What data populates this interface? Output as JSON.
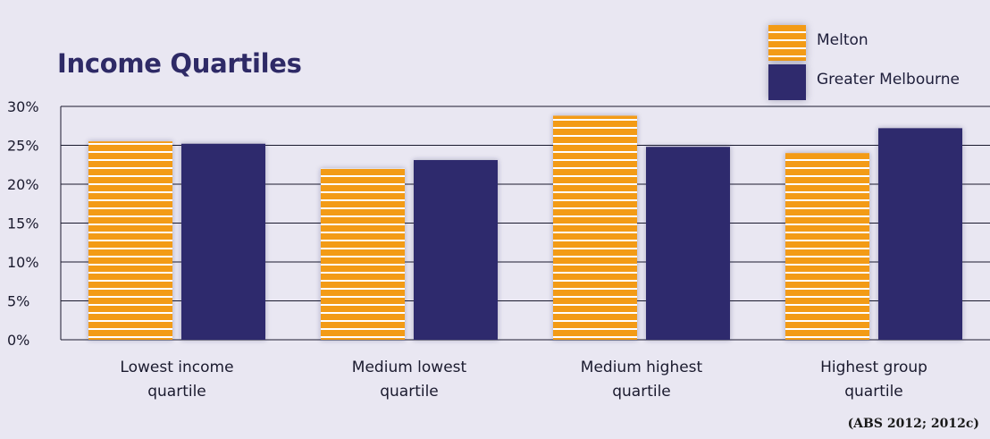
{
  "chart_data": {
    "type": "bar",
    "title": "Income Quartiles",
    "categories": [
      [
        "Lowest income",
        "quartile"
      ],
      [
        "Medium lowest",
        "quartile"
      ],
      [
        "Medium highest",
        "quartile"
      ],
      [
        "Highest group",
        "quartile"
      ]
    ],
    "series": [
      {
        "name": "Melton",
        "values": [
          25.5,
          22,
          28.8,
          24
        ],
        "color": "#f39b16",
        "pattern": "horizontal-white-stripes"
      },
      {
        "name": "Greater Melbourne",
        "values": [
          25.2,
          23.1,
          24.8,
          27.2
        ],
        "color": "#2f2a6d",
        "pattern": "solid"
      }
    ],
    "ylim": [
      0,
      30
    ],
    "yticks": [
      "0%",
      "5%",
      "10%",
      "15%",
      "20%",
      "25%",
      "30%"
    ],
    "xlabel": "",
    "ylabel": "",
    "grid": true,
    "legend_position": "top-right"
  },
  "source_note": "(ABS 2012; 2012c)"
}
